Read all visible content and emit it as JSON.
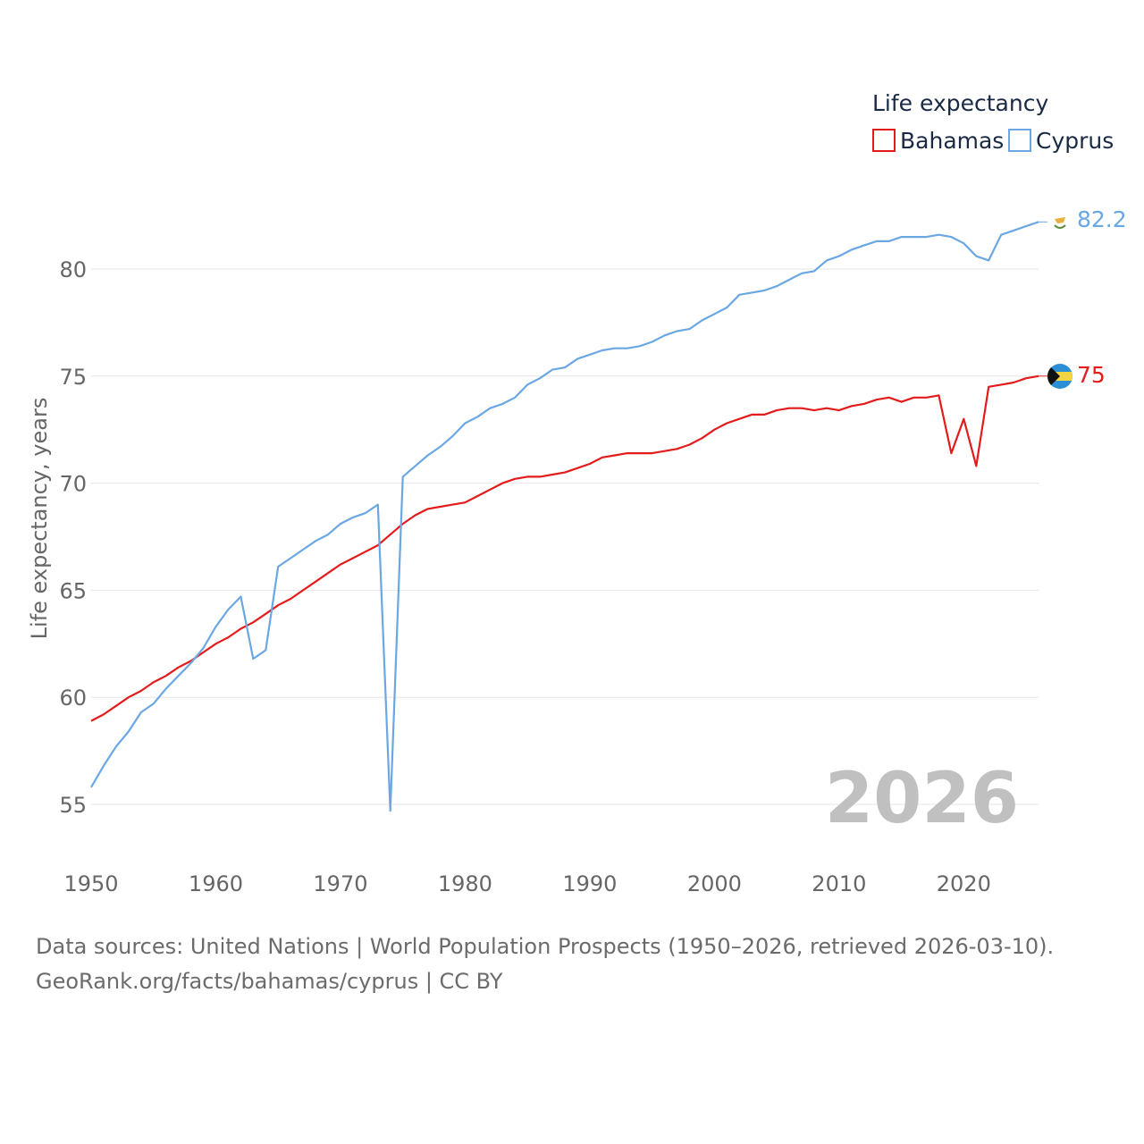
{
  "chart_data": {
    "type": "line",
    "legend_title": "Life expectancy",
    "legend_position": "top-right",
    "ylabel": "Life expectancy, years",
    "xlabel": "",
    "xlim": [
      1950,
      2026
    ],
    "ylim": [
      53,
      83.5
    ],
    "x_ticks": [
      "1950",
      "1960",
      "1970",
      "1980",
      "1990",
      "2000",
      "2010",
      "2020"
    ],
    "y_ticks": [
      "55",
      "60",
      "65",
      "70",
      "75",
      "80"
    ],
    "grid": true,
    "year_label": "2026",
    "x": [
      1950,
      1951,
      1952,
      1953,
      1954,
      1955,
      1956,
      1957,
      1958,
      1959,
      1960,
      1961,
      1962,
      1963,
      1964,
      1965,
      1966,
      1967,
      1968,
      1969,
      1970,
      1971,
      1972,
      1973,
      1974,
      1975,
      1976,
      1977,
      1978,
      1979,
      1980,
      1981,
      1982,
      1983,
      1984,
      1985,
      1986,
      1987,
      1988,
      1989,
      1990,
      1991,
      1992,
      1993,
      1994,
      1995,
      1996,
      1997,
      1998,
      1999,
      2000,
      2001,
      2002,
      2003,
      2004,
      2005,
      2006,
      2007,
      2008,
      2009,
      2010,
      2011,
      2012,
      2013,
      2014,
      2015,
      2016,
      2017,
      2018,
      2019,
      2020,
      2021,
      2022,
      2023,
      2024,
      2025,
      2026
    ],
    "series": [
      {
        "name": "Bahamas",
        "color": "#e31b1b",
        "end_label": "75",
        "flag": "bahamas-flag",
        "values": [
          58.9,
          59.2,
          59.6,
          60.0,
          60.3,
          60.7,
          61.0,
          61.4,
          61.7,
          62.1,
          62.5,
          62.8,
          63.2,
          63.5,
          63.9,
          64.3,
          64.6,
          65.0,
          65.4,
          65.8,
          66.2,
          66.5,
          66.8,
          67.1,
          67.6,
          68.1,
          68.5,
          68.8,
          68.9,
          69.0,
          69.1,
          69.4,
          69.7,
          70.0,
          70.2,
          70.3,
          70.3,
          70.4,
          70.5,
          70.7,
          70.9,
          71.2,
          71.3,
          71.4,
          71.4,
          71.4,
          71.5,
          71.6,
          71.8,
          72.1,
          72.5,
          72.8,
          73.0,
          73.2,
          73.2,
          73.4,
          73.5,
          73.5,
          73.4,
          73.5,
          73.4,
          73.6,
          73.7,
          73.9,
          74.0,
          73.8,
          74.0,
          74.0,
          74.1,
          71.4,
          73.0,
          70.8,
          74.5,
          74.6,
          74.7,
          74.9,
          75.0
        ]
      },
      {
        "name": "Cyprus",
        "color": "#6aa7e3",
        "end_label": "82.2",
        "flag": "cyprus-flag",
        "values": [
          55.8,
          56.8,
          57.7,
          58.4,
          59.3,
          59.7,
          60.4,
          61.0,
          61.6,
          62.3,
          63.3,
          64.1,
          64.7,
          61.8,
          62.2,
          66.1,
          66.5,
          66.9,
          67.3,
          67.6,
          68.1,
          68.4,
          68.6,
          69.0,
          54.7,
          70.3,
          70.8,
          71.3,
          71.7,
          72.2,
          72.8,
          73.1,
          73.5,
          73.7,
          74.0,
          74.6,
          74.9,
          75.3,
          75.4,
          75.8,
          76.0,
          76.2,
          76.3,
          76.3,
          76.4,
          76.6,
          76.9,
          77.1,
          77.2,
          77.6,
          77.9,
          78.2,
          78.8,
          78.9,
          79.0,
          79.2,
          79.5,
          79.8,
          79.9,
          80.4,
          80.6,
          80.9,
          81.1,
          81.3,
          81.3,
          81.5,
          81.5,
          81.5,
          81.6,
          81.5,
          81.2,
          80.6,
          80.4,
          81.6,
          81.8,
          82.0,
          82.2
        ]
      }
    ]
  },
  "footer": {
    "source_line": "Data sources: United Nations | World Population Prospects (1950–2026, retrieved 2026-03-10).",
    "credit_line": "GeoRank.org/facts/bahamas/cyprus | CC BY"
  }
}
